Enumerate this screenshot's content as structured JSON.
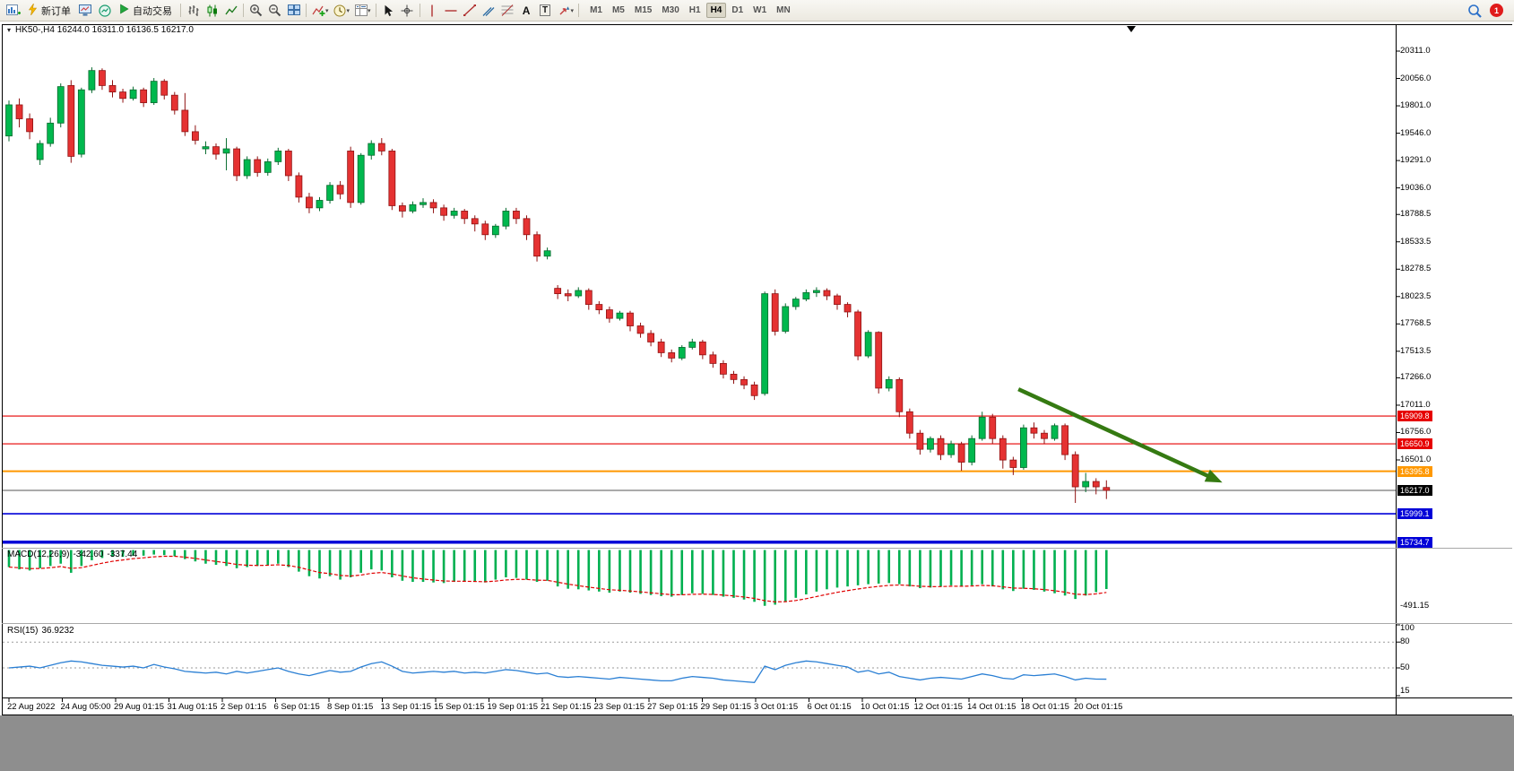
{
  "toolbar": {
    "new_order": "新订单",
    "autotrade": "自动交易",
    "text_tool": "A",
    "textbox_tool": "T",
    "timeframes": [
      "M1",
      "M5",
      "M15",
      "M30",
      "H1",
      "H4",
      "D1",
      "W1",
      "MN"
    ],
    "active_timeframe": "H4",
    "notification_count": "1",
    "glyphs": {
      "caret": "▾",
      "one_click": "▾"
    },
    "icon_names": [
      "new-chart-icon",
      "new-order-icon",
      "charts-screen-icon",
      "market-watch-icon",
      "autotrade-play-icon",
      "bar-chart-icon",
      "candlestick-chart-icon",
      "line-chart-icon",
      "zoom-in-icon",
      "zoom-out-icon",
      "tile-windows-icon",
      "indicators-icon",
      "periods-clock-icon",
      "templates-icon",
      "cursor-icon",
      "crosshair-icon",
      "vertical-line-icon",
      "horizontal-line-icon",
      "trendline-icon",
      "channel-icon",
      "fibonacci-icon",
      "text-icon",
      "text-label-icon",
      "arrows-icon",
      "search-icon",
      "notification-badge"
    ]
  },
  "chart": {
    "symbol": "HK50-",
    "period": "H4",
    "ohlc": {
      "open": "16244.0",
      "high": "16311.0",
      "low": "16136.5",
      "close": "16217.0"
    }
  },
  "macd_panel": {
    "label": "MACD(12,26,9)",
    "value_main": "-342.60",
    "value_signal": "-337.44"
  },
  "rsi_panel": {
    "label": "RSI(15)",
    "value": "36.9232"
  },
  "chart_data": {
    "type": "candlestick",
    "title": "HK50-,H4",
    "y_axis_ticks": [
      "20311.0",
      "20056.0",
      "19801.0",
      "19546.0",
      "19291.0",
      "19036.0",
      "18788.5",
      "18533.5",
      "18278.5",
      "18023.5",
      "17768.5",
      "17513.5",
      "17266.0",
      "17011.0",
      "16756.0",
      "16501.0"
    ],
    "x_labels": [
      "22 Aug 2022",
      "24 Aug 05:00",
      "29 Aug 01:15",
      "31 Aug 01:15",
      "2 Sep 01:15",
      "6 Sep 01:15",
      "8 Sep 01:15",
      "13 Sep 01:15",
      "15 Sep 01:15",
      "19 Sep 01:15",
      "21 Sep 01:15",
      "23 Sep 01:15",
      "27 Sep 01:15",
      "29 Sep 01:15",
      "3 Oct 01:15",
      "6 Oct 01:15",
      "10 Oct 01:15",
      "12 Oct 01:15",
      "14 Oct 01:15",
      "18 Oct 01:15",
      "20 Oct 01:15"
    ],
    "levels": [
      {
        "price": 16909.8,
        "label": "16909.8",
        "color": "#e60000",
        "width": 1.2,
        "tag_bg": "#e60000"
      },
      {
        "price": 16650.9,
        "label": "16650.9",
        "color": "#e60000",
        "width": 1.2,
        "tag_bg": "#e60000"
      },
      {
        "price": 16395.8,
        "label": "16395.8",
        "color": "#ff9800",
        "width": 2,
        "tag_bg": "#ff9800"
      },
      {
        "price": 16217.0,
        "label": "16217.0",
        "color": "#555555",
        "width": 1,
        "tag_bg": "#000000"
      },
      {
        "price": 15999.1,
        "label": "15999.1",
        "color": "#0000d8",
        "width": 1.6,
        "tag_bg": "#0000d8"
      },
      {
        "price": 15734.7,
        "label": "15734.7",
        "color": "#0000d8",
        "width": 3.5,
        "tag_bg": "#0000d8"
      }
    ],
    "annotation_arrow": {
      "from_index": 97.5,
      "from_price": 17160,
      "to_index": 117.2,
      "to_price": 16290,
      "color": "#357a12"
    },
    "candle_colors": {
      "bull_fill": "#00b84e",
      "bull_stroke": "#066a2e",
      "bear_fill": "#e53232",
      "bear_stroke": "#8f1212"
    },
    "candles_ohlc": [
      [
        19520,
        19850,
        19470,
        19810
      ],
      [
        19810,
        19870,
        19600,
        19680
      ],
      [
        19680,
        19730,
        19490,
        19560
      ],
      [
        19300,
        19480,
        19250,
        19450
      ],
      [
        19450,
        19690,
        19420,
        19640
      ],
      [
        19640,
        20010,
        19600,
        19980
      ],
      [
        19990,
        20040,
        19270,
        19330
      ],
      [
        19350,
        19970,
        19320,
        19950
      ],
      [
        19950,
        20160,
        19920,
        20130
      ],
      [
        20130,
        20150,
        19950,
        19990
      ],
      [
        19990,
        20040,
        19880,
        19930
      ],
      [
        19930,
        19960,
        19830,
        19870
      ],
      [
        19870,
        19980,
        19850,
        19950
      ],
      [
        19950,
        19970,
        19790,
        19830
      ],
      [
        19830,
        20060,
        19810,
        20030
      ],
      [
        20030,
        20050,
        19860,
        19900
      ],
      [
        19900,
        19930,
        19720,
        19760
      ],
      [
        19760,
        19920,
        19520,
        19560
      ],
      [
        19560,
        19620,
        19440,
        19480
      ],
      [
        19400,
        19470,
        19350,
        19420
      ],
      [
        19420,
        19450,
        19300,
        19350
      ],
      [
        19360,
        19500,
        19200,
        19400
      ],
      [
        19400,
        19420,
        19100,
        19150
      ],
      [
        19150,
        19330,
        19120,
        19300
      ],
      [
        19300,
        19330,
        19140,
        19180
      ],
      [
        19180,
        19310,
        19150,
        19280
      ],
      [
        19280,
        19410,
        19250,
        19380
      ],
      [
        19380,
        19400,
        19100,
        19150
      ],
      [
        19150,
        19180,
        18900,
        18950
      ],
      [
        18950,
        18990,
        18800,
        18850
      ],
      [
        18850,
        18950,
        18820,
        18920
      ],
      [
        18920,
        19090,
        18890,
        19060
      ],
      [
        19060,
        19100,
        18930,
        18980
      ],
      [
        19380,
        19420,
        18850,
        18900
      ],
      [
        18900,
        19360,
        18880,
        19340
      ],
      [
        19340,
        19480,
        19300,
        19450
      ],
      [
        19450,
        19500,
        19340,
        19380
      ],
      [
        19380,
        19400,
        18830,
        18870
      ],
      [
        18870,
        18900,
        18760,
        18820
      ],
      [
        18820,
        18910,
        18800,
        18880
      ],
      [
        18880,
        18940,
        18850,
        18900
      ],
      [
        18900,
        18930,
        18800,
        18850
      ],
      [
        18850,
        18880,
        18730,
        18780
      ],
      [
        18780,
        18850,
        18750,
        18820
      ],
      [
        18820,
        18840,
        18700,
        18750
      ],
      [
        18750,
        18780,
        18630,
        18700
      ],
      [
        18700,
        18730,
        18550,
        18600
      ],
      [
        18600,
        18700,
        18570,
        18680
      ],
      [
        18680,
        18850,
        18650,
        18820
      ],
      [
        18820,
        18850,
        18700,
        18750
      ],
      [
        18750,
        18780,
        18550,
        18600
      ],
      [
        18600,
        18630,
        18350,
        18400
      ],
      [
        18400,
        18480,
        18370,
        18450
      ],
      [
        18100,
        18130,
        18000,
        18050
      ],
      [
        18050,
        18090,
        17980,
        18030
      ],
      [
        18030,
        18110,
        18010,
        18080
      ],
      [
        18080,
        18100,
        17900,
        17950
      ],
      [
        17950,
        17980,
        17860,
        17900
      ],
      [
        17900,
        17930,
        17780,
        17820
      ],
      [
        17820,
        17890,
        17800,
        17870
      ],
      [
        17870,
        17890,
        17700,
        17750
      ],
      [
        17750,
        17780,
        17640,
        17680
      ],
      [
        17680,
        17710,
        17560,
        17600
      ],
      [
        17600,
        17630,
        17460,
        17500
      ],
      [
        17500,
        17530,
        17410,
        17450
      ],
      [
        17450,
        17570,
        17430,
        17550
      ],
      [
        17550,
        17630,
        17530,
        17600
      ],
      [
        17600,
        17620,
        17440,
        17480
      ],
      [
        17480,
        17510,
        17360,
        17400
      ],
      [
        17400,
        17430,
        17260,
        17300
      ],
      [
        17300,
        17330,
        17210,
        17250
      ],
      [
        17250,
        17280,
        17160,
        17200
      ],
      [
        17200,
        17230,
        17060,
        17100
      ],
      [
        17120,
        18070,
        17100,
        18050
      ],
      [
        18050,
        18090,
        17660,
        17700
      ],
      [
        17700,
        17960,
        17680,
        17930
      ],
      [
        17930,
        18020,
        17900,
        18000
      ],
      [
        18000,
        18090,
        17980,
        18060
      ],
      [
        18060,
        18110,
        18020,
        18080
      ],
      [
        18080,
        18100,
        17990,
        18030
      ],
      [
        18030,
        18050,
        17900,
        17950
      ],
      [
        17950,
        17970,
        17830,
        17880
      ],
      [
        17880,
        17900,
        17430,
        17470
      ],
      [
        17470,
        17710,
        17450,
        17690
      ],
      [
        17690,
        17700,
        17120,
        17170
      ],
      [
        17170,
        17280,
        17140,
        17250
      ],
      [
        17250,
        17270,
        16900,
        16950
      ],
      [
        16950,
        16980,
        16700,
        16750
      ],
      [
        16750,
        16780,
        16550,
        16600
      ],
      [
        16600,
        16720,
        16570,
        16700
      ],
      [
        16700,
        16730,
        16500,
        16550
      ],
      [
        16550,
        16680,
        16520,
        16650
      ],
      [
        16650,
        16670,
        16400,
        16480
      ],
      [
        16480,
        16730,
        16450,
        16700
      ],
      [
        16700,
        16950,
        16680,
        16900
      ],
      [
        16900,
        16930,
        16650,
        16700
      ],
      [
        16700,
        16730,
        16420,
        16500
      ],
      [
        16500,
        16530,
        16360,
        16430
      ],
      [
        16430,
        16830,
        16410,
        16800
      ],
      [
        16800,
        16850,
        16700,
        16750
      ],
      [
        16750,
        16780,
        16650,
        16700
      ],
      [
        16700,
        16840,
        16680,
        16820
      ],
      [
        16820,
        16840,
        16500,
        16550
      ],
      [
        16550,
        16580,
        16100,
        16250
      ],
      [
        16250,
        16380,
        16200,
        16300
      ],
      [
        16300,
        16330,
        16180,
        16250
      ],
      [
        16244,
        16311,
        16136.5,
        16217
      ]
    ],
    "macd": {
      "axis_label": "-491.15",
      "histogram_color": "#00b050",
      "signal_color": "#e00000",
      "histogram": [
        -150,
        -170,
        -180,
        -160,
        -140,
        -120,
        -200,
        -140,
        -90,
        -70,
        -60,
        -60,
        -50,
        -50,
        -40,
        -45,
        -55,
        -80,
        -100,
        -120,
        -130,
        -140,
        -160,
        -150,
        -140,
        -130,
        -120,
        -150,
        -190,
        -230,
        -250,
        -230,
        -260,
        -240,
        -200,
        -170,
        -180,
        -240,
        -270,
        -280,
        -280,
        -285,
        -290,
        -280,
        -275,
        -280,
        -285,
        -260,
        -240,
        -245,
        -260,
        -280,
        -270,
        -320,
        -340,
        -345,
        -355,
        -365,
        -375,
        -365,
        -375,
        -385,
        -395,
        -405,
        -410,
        -395,
        -380,
        -385,
        -395,
        -410,
        -420,
        -435,
        -455,
        -490,
        -480,
        -450,
        -420,
        -390,
        -365,
        -345,
        -330,
        -320,
        -310,
        -300,
        -295,
        -290,
        -300,
        -320,
        -335,
        -330,
        -320,
        -310,
        -320,
        -310,
        -300,
        -320,
        -345,
        -360,
        -340,
        -350,
        -365,
        -380,
        -400,
        -430,
        -400,
        -370,
        -342.6
      ]
    },
    "rsi": {
      "line_color": "#2a7fd4",
      "levels": [
        80,
        50
      ],
      "axis_labels": [
        "100",
        "80",
        "50",
        "15"
      ],
      "values": [
        50,
        51,
        52,
        50,
        53,
        56,
        58,
        57,
        55,
        53,
        52,
        51,
        52,
        50,
        54,
        51,
        49,
        46,
        45,
        44,
        45,
        43,
        46,
        44,
        46,
        48,
        50,
        46,
        43,
        41,
        44,
        47,
        45,
        46,
        51,
        55,
        57,
        52,
        46,
        44,
        45,
        46,
        45,
        46,
        44,
        45,
        44,
        46,
        48,
        47,
        45,
        43,
        44,
        40,
        39,
        40,
        39,
        38,
        37,
        39,
        38,
        37,
        36,
        35,
        35,
        38,
        40,
        39,
        38,
        36,
        35,
        34,
        33,
        52,
        48,
        53,
        56,
        58,
        57,
        55,
        53,
        51,
        45,
        47,
        43,
        45,
        40,
        38,
        36,
        38,
        39,
        38,
        37,
        40,
        43,
        41,
        38,
        37,
        42,
        41,
        42,
        43,
        40,
        36,
        38,
        37,
        36.9
      ]
    }
  }
}
